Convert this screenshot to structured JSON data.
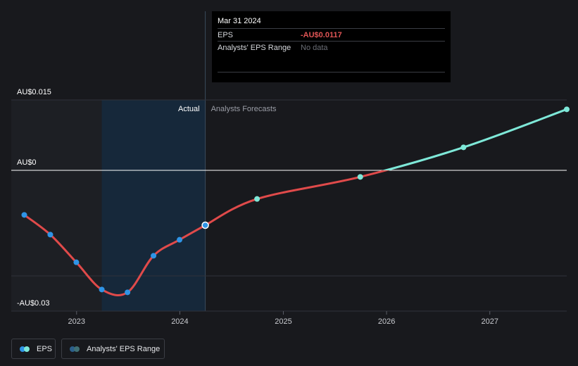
{
  "tooltip": {
    "date": "Mar 31 2024",
    "eps_label": "EPS",
    "eps_value": "-AU$0.0117",
    "range_label": "Analysts' EPS Range",
    "range_value": "No data"
  },
  "regions": {
    "actual_label": "Actual",
    "forecast_label": "Analysts Forecasts"
  },
  "legend": {
    "eps_label": "EPS",
    "range_label": "Analysts' EPS Range"
  },
  "colors": {
    "background": "#18191d",
    "past_band": "#1d1f24",
    "highlight_band": "#16283a",
    "actual_line": "#e04a4a",
    "actual_point": "#2f94e6",
    "forecast_line": "#7ee8d8",
    "zero_line": "#ffffff",
    "grid": "#30323a"
  },
  "chart_data": {
    "type": "line",
    "x_axis": {
      "ticks": [
        "2023",
        "2024",
        "2025",
        "2026",
        "2027"
      ],
      "range": [
        "2022-05-15",
        "2027-09-30"
      ]
    },
    "y_axis": {
      "tick_labels": [
        "AU$0.015",
        "AU$0",
        "-AU$0.03"
      ],
      "tick_values": [
        0.015,
        0,
        -0.03
      ],
      "range": [
        -0.03,
        0.015
      ]
    },
    "series": [
      {
        "name": "EPS",
        "segment": "actual",
        "x": [
          "2022-06-30",
          "2022-09-30",
          "2022-12-31",
          "2023-03-31",
          "2023-06-30",
          "2023-09-30",
          "2023-12-31",
          "2024-03-31"
        ],
        "y": [
          -0.0095,
          -0.0137,
          -0.0196,
          -0.0254,
          -0.026,
          -0.0182,
          -0.0148,
          -0.0117
        ]
      },
      {
        "name": "EPS",
        "segment": "forecast",
        "x": [
          "2024-03-31",
          "2024-09-30",
          "2025-09-30",
          "2026-09-30",
          "2027-09-30"
        ],
        "y": [
          -0.0117,
          -0.0061,
          -0.0014,
          0.0049,
          0.013
        ]
      }
    ],
    "actual_highlight": [
      "2023-03-31",
      "2024-03-31"
    ],
    "grid": true,
    "legend_position": "bottom-left"
  }
}
